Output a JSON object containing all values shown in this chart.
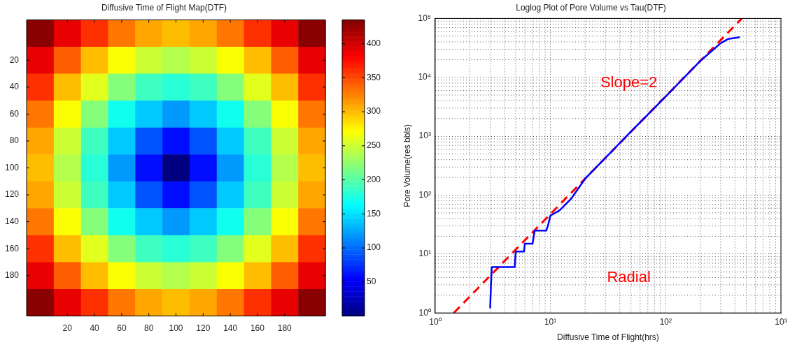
{
  "chart_data": [
    {
      "type": "heatmap",
      "title": "Diffusive Time of Flight Map(DTF)",
      "categories": [
        null,
        "20",
        "40",
        "60",
        "80",
        "100",
        "120",
        "140",
        "160",
        "180",
        null
      ],
      "y_categories": [
        null,
        "20",
        "40",
        "60",
        "80",
        "100",
        "120",
        "140",
        "160",
        "180",
        null
      ],
      "cells": [
        [
          430,
          390,
          360,
          330,
          310,
          300,
          310,
          330,
          360,
          390,
          430
        ],
        [
          390,
          340,
          300,
          270,
          250,
          240,
          250,
          270,
          300,
          340,
          390
        ],
        [
          360,
          300,
          260,
          220,
          190,
          180,
          190,
          220,
          260,
          300,
          360
        ],
        [
          330,
          270,
          220,
          170,
          140,
          120,
          140,
          170,
          220,
          270,
          330
        ],
        [
          310,
          250,
          190,
          140,
          90,
          60,
          90,
          140,
          190,
          250,
          310
        ],
        [
          300,
          240,
          180,
          120,
          60,
          0,
          60,
          120,
          180,
          240,
          300
        ],
        [
          310,
          250,
          190,
          140,
          90,
          60,
          90,
          140,
          190,
          250,
          310
        ],
        [
          330,
          270,
          220,
          170,
          140,
          120,
          140,
          170,
          220,
          270,
          330
        ],
        [
          360,
          300,
          260,
          220,
          190,
          180,
          190,
          220,
          260,
          300,
          360
        ],
        [
          390,
          340,
          300,
          270,
          250,
          240,
          250,
          270,
          300,
          340,
          390
        ],
        [
          430,
          390,
          360,
          330,
          310,
          300,
          310,
          330,
          360,
          390,
          430
        ]
      ],
      "clim": [
        0,
        435
      ],
      "cticks": [
        50,
        100,
        150,
        200,
        250,
        300,
        350,
        400
      ]
    },
    {
      "type": "line",
      "title": "Loglog Plot of Pore Volume vs Tau(DTF)",
      "xlabel": "Diffusive Time of Flight(hrs)",
      "ylabel": "Pore Volume(res bbls)",
      "log": "xy",
      "grid": true,
      "xlim": [
        1,
        1000
      ],
      "ylim": [
        1,
        100000
      ],
      "xticks": [
        {
          "value": 1,
          "label": "10⁰"
        },
        {
          "value": 10,
          "label": "10¹"
        },
        {
          "value": 100,
          "label": "10²"
        },
        {
          "value": 1000,
          "label": "10³"
        }
      ],
      "yticks": [
        {
          "value": 1,
          "label": "10⁰"
        },
        {
          "value": 10,
          "label": "10¹"
        },
        {
          "value": 100,
          "label": "10²"
        },
        {
          "value": 1000,
          "label": "10³"
        },
        {
          "value": 10000,
          "label": "10⁴"
        },
        {
          "value": 100000,
          "label": "10⁵"
        }
      ],
      "series": [
        {
          "color": "#0000ff",
          "line_style": "solid",
          "x": [
            3.0,
            3.05,
            3.1,
            4.9,
            5.0,
            5.9,
            6.0,
            7.0,
            7.3,
            9.2,
            9.5,
            10,
            12,
            15,
            20,
            30,
            50,
            100,
            200,
            300,
            350,
            440
          ],
          "values": [
            1.2,
            3,
            6,
            6,
            11,
            11,
            15,
            15,
            25,
            25,
            30,
            45,
            55,
            85,
            190,
            430,
            1200,
            4700,
            19000,
            38000,
            45000,
            48000
          ]
        },
        {
          "color": "#ff0000",
          "line_style": "dashed",
          "x": [
            1.45,
            458
          ],
          "values": [
            1,
            100000
          ]
        }
      ],
      "annotations": [
        "Slope=2",
        "Radial"
      ]
    }
  ]
}
